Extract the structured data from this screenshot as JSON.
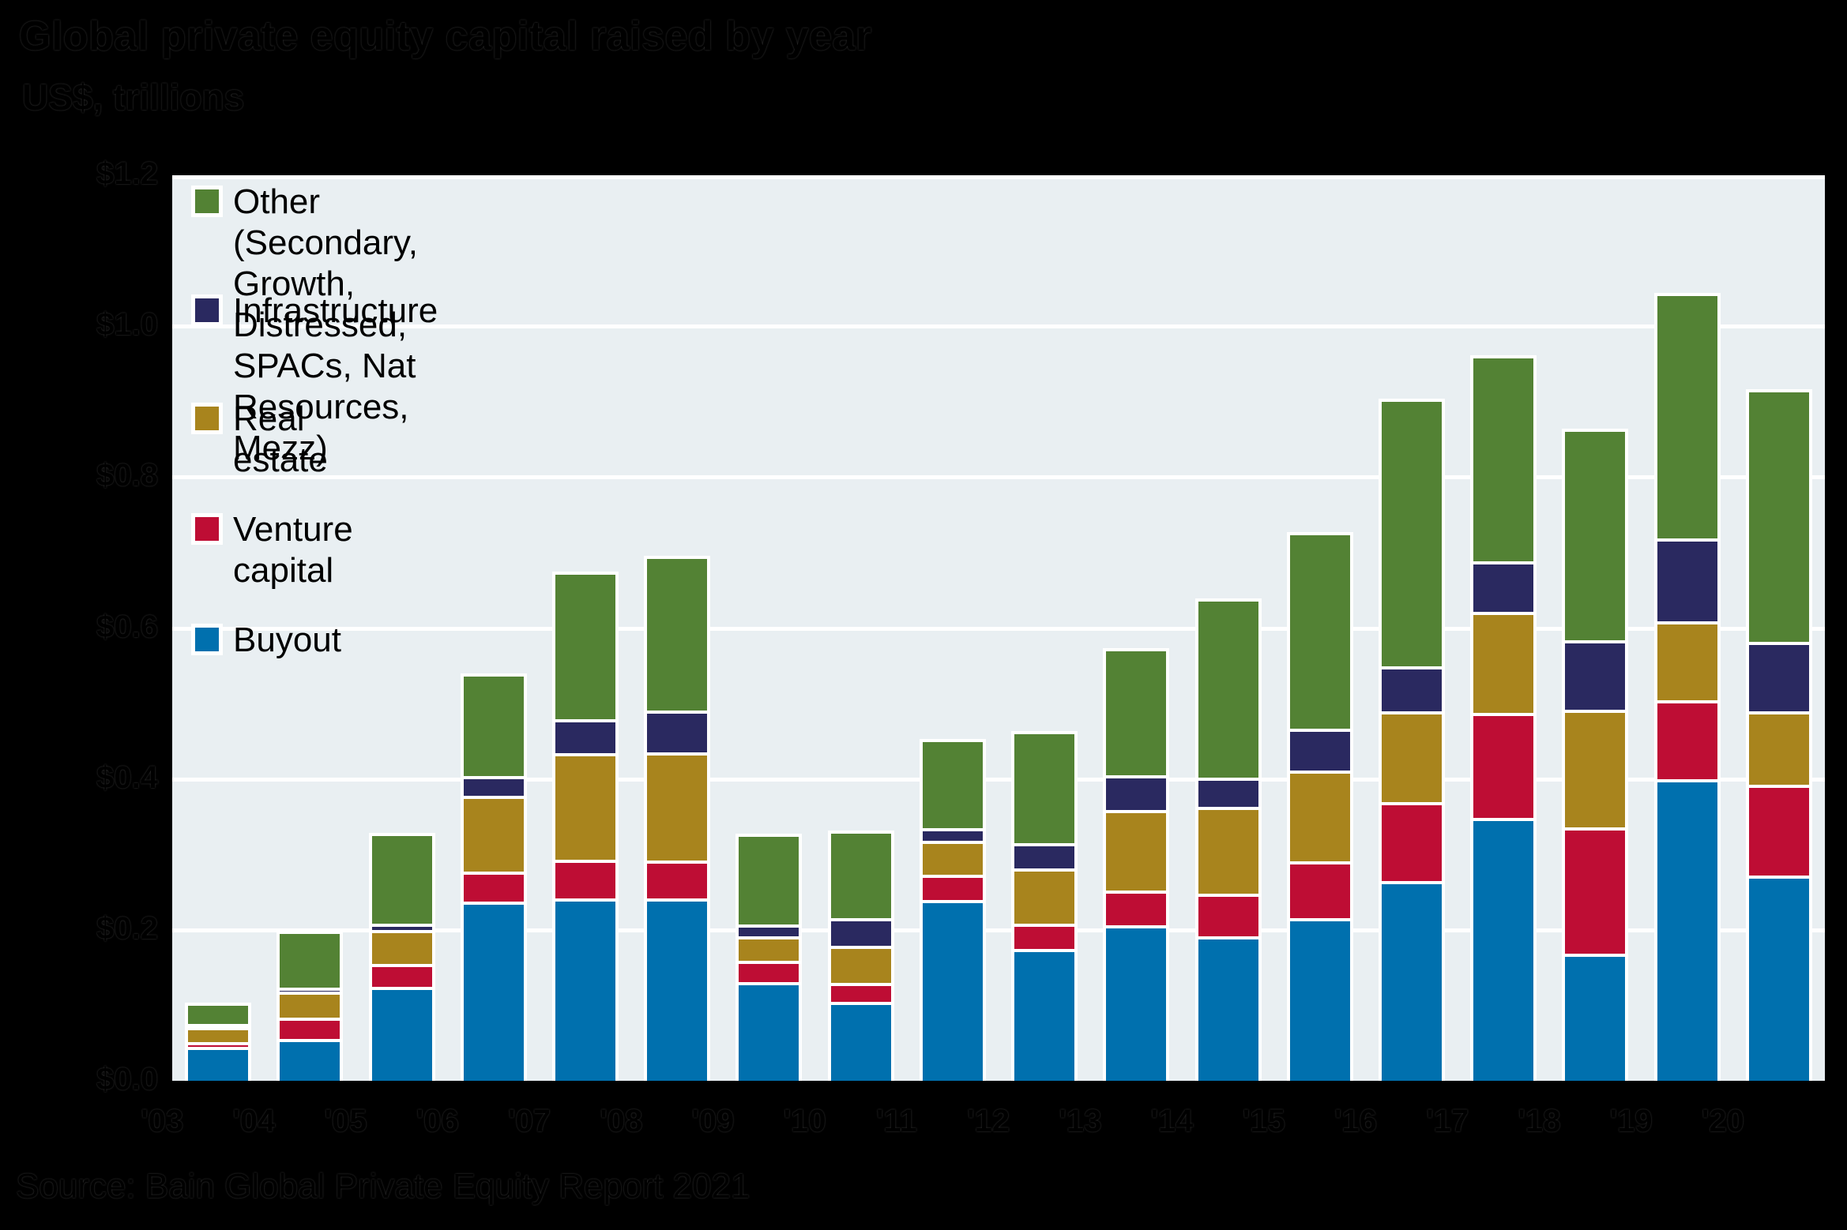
{
  "header": {
    "title": "Global private equity capital raised by year",
    "subtitle": "US$, trillions"
  },
  "footer": {
    "source": "Source: Bain Global Private Equity Report 2021"
  },
  "colors": {
    "page_background": "#000000",
    "plot_background": "#E9EFF2",
    "gridline": "#FFFFFF",
    "bar_outline": "#FFFFFF",
    "text": "#000000"
  },
  "chart_data": {
    "type": "bar",
    "stacked": true,
    "title": "Global private equity capital raised by year",
    "subtitle": "US$, trillions",
    "source": "Source: Bain Global Private Equity Report 2021",
    "values_unit": "US$ billions",
    "x": [
      "'03",
      "'04",
      "'05",
      "'06",
      "'07",
      "'08",
      "'09",
      "'10",
      "'11",
      "'12",
      "'13",
      "'14",
      "'15",
      "'16",
      "'17",
      "'18",
      "'19",
      "'20"
    ],
    "series": [
      {
        "name": "Buyout",
        "color": "#0070AE",
        "values": [
          45,
          55,
          125,
          238,
          242,
          242,
          131,
          105,
          240,
          175,
          206,
          191,
          215,
          265,
          348,
          168,
          400,
          272
        ]
      },
      {
        "name": "Venture capital",
        "color": "#BE0D34",
        "values": [
          6,
          28,
          30,
          40,
          51,
          50,
          28,
          25,
          34,
          34,
          46,
          57,
          75,
          105,
          139,
          167,
          105,
          120
        ]
      },
      {
        "name": "Real estate",
        "color": "#A8841D",
        "values": [
          20,
          35,
          45,
          100,
          141,
          143,
          32,
          49,
          45,
          73,
          107,
          115,
          120,
          120,
          134,
          156,
          105,
          97
        ]
      },
      {
        "name": "Infrastructure",
        "color": "#2A2960",
        "values": [
          2,
          5,
          8,
          26,
          45,
          55,
          16,
          37,
          17,
          34,
          46,
          39,
          55,
          60,
          67,
          92,
          110,
          92
        ]
      },
      {
        "name": "Other (Secondary, Growth, Distressed, SPACs, Nat Resources, Mezz)",
        "color": "#538234",
        "values": [
          28,
          75,
          120,
          136,
          196,
          205,
          120,
          116,
          118,
          149,
          168,
          237,
          260,
          355,
          273,
          280,
          325,
          335
        ]
      }
    ],
    "totals": [
      101,
      198,
      328,
      540,
      675,
      695,
      327,
      332,
      454,
      465,
      573,
      639,
      725,
      905,
      961,
      863,
      1045,
      916
    ],
    "y_axis": {
      "unit": "US$ trillions",
      "min": 0.0,
      "max": 1.2,
      "tick_step": 0.2,
      "tick_labels": [
        "$0.0",
        "$0.2",
        "$0.4",
        "$0.6",
        "$0.8",
        "$1.0",
        "$1.2"
      ]
    },
    "legend": {
      "position": "top-left-inside-plot",
      "order_top_to_bottom": [
        "Other (Secondary, Growth, Distressed, SPACs, Nat Resources, Mezz)",
        "Infrastructure",
        "Real estate",
        "Venture capital",
        "Buyout"
      ]
    },
    "grid": true
  }
}
